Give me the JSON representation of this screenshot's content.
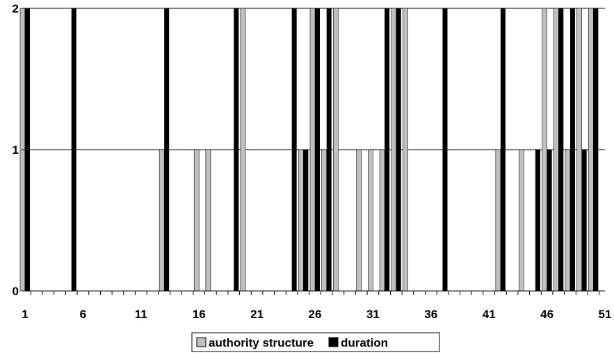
{
  "chart_data": {
    "type": "bar",
    "title": "",
    "xlabel": "",
    "ylabel": "",
    "ylim": [
      0,
      2
    ],
    "yticks": [
      0,
      1,
      2
    ],
    "x_tick_labels": [
      "1",
      "6",
      "11",
      "16",
      "21",
      "26",
      "31",
      "36",
      "41",
      "46",
      "51"
    ],
    "x_tick_values": [
      1,
      6,
      11,
      16,
      21,
      26,
      31,
      36,
      41,
      46,
      51
    ],
    "categories": [
      1,
      2,
      3,
      4,
      5,
      6,
      7,
      8,
      9,
      10,
      11,
      12,
      13,
      14,
      15,
      16,
      17,
      18,
      19,
      20,
      21,
      22,
      23,
      24,
      25,
      26,
      27,
      28,
      29,
      30,
      31,
      32,
      33,
      34,
      35,
      36,
      37,
      38,
      39,
      40,
      41,
      42,
      43,
      44,
      45,
      46,
      47,
      48,
      49,
      50,
      51
    ],
    "grid": "horizontal",
    "legend_position": "bottom",
    "series": [
      {
        "name": "authority structure",
        "color": "#c0c0c0",
        "values": [
          2,
          0,
          0,
          0,
          0,
          0,
          0,
          0,
          0,
          0,
          0,
          0,
          1,
          0,
          0,
          1,
          1,
          0,
          0,
          2,
          0,
          0,
          0,
          0,
          1,
          2,
          1,
          2,
          0,
          1,
          1,
          1,
          2,
          2,
          0,
          0,
          0,
          0,
          0,
          0,
          0,
          1,
          0,
          1,
          0,
          2,
          2,
          1,
          2,
          2,
          0
        ]
      },
      {
        "name": "duration",
        "color": "#000000",
        "values": [
          2,
          0,
          0,
          0,
          2,
          0,
          0,
          0,
          0,
          0,
          0,
          0,
          2,
          0,
          0,
          0,
          0,
          0,
          2,
          0,
          0,
          0,
          0,
          2,
          1,
          2,
          2,
          0,
          0,
          0,
          0,
          2,
          2,
          0,
          0,
          0,
          2,
          0,
          0,
          0,
          0,
          2,
          0,
          0,
          1,
          1,
          2,
          2,
          1,
          2,
          0
        ]
      }
    ]
  }
}
